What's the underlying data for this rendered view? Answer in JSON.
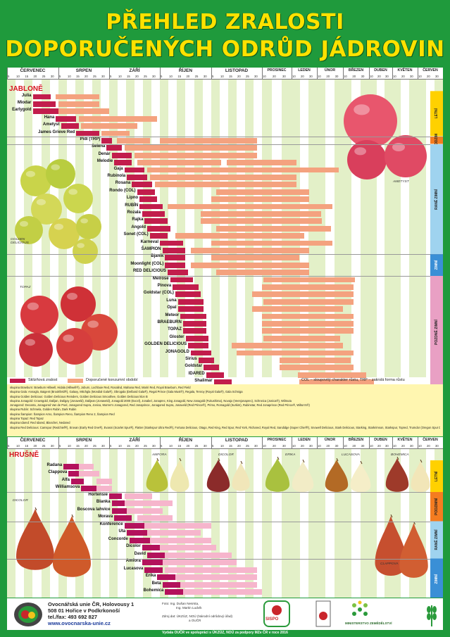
{
  "title": {
    "line1": "PŘEHLED ZRALOSTI",
    "line2": "DOPORUČENÝCH ODRŮD JÁDROVIN"
  },
  "months": [
    "ČERVENEC",
    "SRPEN",
    "ZÁŘÍ",
    "ŘÍJEN",
    "LISTOPAD",
    "PROSINEC",
    "LEDEN",
    "ÚNOR",
    "BŘEZEN",
    "DUBEN",
    "KVĚTEN",
    "ČERVEN"
  ],
  "days_detailed": [
    "5",
    "10",
    "15",
    "20",
    "25",
    "30"
  ],
  "days_compact": [
    "10",
    "20",
    "30"
  ],
  "colors": {
    "ripeness": "#c21d4c",
    "consumer": "#f4a27f",
    "pear_consumer": "#f6b5cc",
    "pear_ripeness": "#b3125c",
    "stripe_green": "#e3f0c8",
    "letni": "#ffd100",
    "podzimni": "#f47c20",
    "rane_zimni": "#9fd3ef",
    "zimni": "#3a8fd6",
    "pozdne_zimni": "#e9a0c4"
  },
  "apple": {
    "section_title": "JABLONĚ",
    "rows": [
      {
        "name": "Julia",
        "r": [
          0.5,
          0.85
        ],
        "c": [
          [
            0.95,
            1.8
          ]
        ]
      },
      {
        "name": "Miodar",
        "r": [
          0.5,
          0.95
        ],
        "c": [
          [
            1.0,
            1.8
          ]
        ]
      },
      {
        "name": "Earlygold",
        "r": [
          0.5,
          1.05
        ],
        "c": [
          [
            1.0,
            2.0
          ]
        ]
      },
      {
        "name": "Hana",
        "r": [
          0.95,
          1.35
        ],
        "c": [
          [
            1.4,
            2.95
          ]
        ]
      },
      {
        "name": "Ametyst",
        "r": [
          1.05,
          1.4
        ],
        "c": [
          [
            1.45,
            2.55
          ]
        ]
      },
      {
        "name": "James Grieve Red",
        "r": [
          1.35,
          1.8
        ],
        "c": [
          [
            1.85,
            2.4
          ]
        ]
      },
      {
        "name": "Pidi (TRP)",
        "r": [
          1.85,
          2.05
        ],
        "c": [
          [
            2.15,
            2.8
          ],
          [
            3.0,
            4.9
          ]
        ]
      },
      {
        "name": "Selena",
        "r": [
          1.95,
          2.25
        ],
        "c": [
          [
            2.3,
            4.9
          ]
        ]
      },
      {
        "name": "Denár",
        "r": [
          2.05,
          2.45
        ],
        "c": [
          [
            2.5,
            4.9
          ]
        ]
      },
      {
        "name": "Melodie",
        "r": [
          2.1,
          2.45
        ],
        "c": [
          [
            2.55,
            4.2
          ],
          [
            4.3,
            6.2
          ]
        ]
      },
      {
        "name": "Gaja",
        "r": [
          2.3,
          2.7
        ],
        "c": [
          [
            2.75,
            7.85
          ]
        ]
      },
      {
        "name": "Rubinola",
        "r": [
          2.35,
          2.75
        ],
        "c": [
          [
            2.8,
            6.2
          ]
        ]
      },
      {
        "name": "Rosana",
        "r": [
          2.45,
          2.85
        ],
        "c": [
          [
            2.9,
            6.2
          ]
        ]
      },
      {
        "name": "Rondo (COL)",
        "r": [
          2.55,
          2.9
        ],
        "c": [
          [
            4.1,
            6.7
          ]
        ]
      },
      {
        "name": "Lipno",
        "r": [
          2.6,
          2.95
        ],
        "c": [
          [
            4.0,
            6.7
          ]
        ]
      },
      {
        "name": "RUBÍN",
        "r": [
          2.6,
          3.05
        ],
        "c": [
          [
            3.15,
            7.6
          ]
        ]
      },
      {
        "name": "Rozala",
        "r": [
          2.65,
          3.1
        ],
        "c": [
          [
            3.8,
            7.15
          ]
        ]
      },
      {
        "name": "Rajka",
        "r": [
          2.7,
          3.15
        ],
        "c": [
          [
            3.8,
            7.2
          ]
        ]
      },
      {
        "name": "Angold",
        "r": [
          2.75,
          3.2
        ],
        "c": [
          [
            4.1,
            7.55
          ]
        ]
      },
      {
        "name": "Sonet (COL)",
        "r": [
          2.8,
          3.15
        ],
        "c": [
          [
            3.3,
            6.5
          ]
        ]
      },
      {
        "name": "Karneval",
        "r": [
          3.0,
          3.45
        ],
        "c": [
          [
            4.0,
            7.6
          ]
        ]
      },
      {
        "name": "ŠAMPION",
        "r": [
          3.05,
          3.5
        ],
        "c": [
          [
            3.6,
            6.7
          ]
        ]
      },
      {
        "name": "Bjanik",
        "r": [
          3.1,
          3.5
        ],
        "c": [
          [
            4.0,
            6.3
          ]
        ]
      },
      {
        "name": "Moonlight (COL)",
        "r": [
          3.1,
          3.5
        ],
        "c": [
          [
            3.6,
            6.7
          ]
        ]
      },
      {
        "name": "RED DELICIOUS",
        "r": [
          3.15,
          3.55
        ],
        "c": [
          [
            4.1,
            6.7
          ]
        ]
      },
      {
        "name": "Melrose",
        "r": [
          3.2,
          3.65
        ],
        "c": [
          [
            5.05,
            8.45
          ]
        ]
      },
      {
        "name": "Pinova",
        "r": [
          3.25,
          3.75
        ],
        "c": [
          [
            5.0,
            8.4
          ]
        ]
      },
      {
        "name": "Goldstar (COL)",
        "r": [
          3.3,
          3.8
        ],
        "c": [
          [
            4.8,
            8.4
          ]
        ]
      },
      {
        "name": "Luna",
        "r": [
          3.35,
          3.85
        ],
        "c": [
          [
            5.05,
            8.4
          ]
        ]
      },
      {
        "name": "Opal",
        "r": [
          3.35,
          3.85
        ],
        "c": [
          [
            4.8,
            8.0
          ]
        ]
      },
      {
        "name": "Meteor",
        "r": [
          3.4,
          3.9
        ],
        "c": [
          [
            5.0,
            8.4
          ]
        ]
      },
      {
        "name": "BRAEBURN",
        "r": [
          3.45,
          3.9
        ],
        "c": [
          [
            5.0,
            8.4
          ]
        ]
      },
      {
        "name": "TOPAZ",
        "r": [
          3.45,
          3.9
        ],
        "c": [
          [
            5.0,
            8.4
          ]
        ]
      },
      {
        "name": "Gloster",
        "r": [
          3.5,
          3.95
        ],
        "c": [
          [
            5.05,
            7.9
          ]
        ]
      },
      {
        "name": "GOLDEN DELICIOUS",
        "r": [
          3.55,
          3.95
        ],
        "c": [
          [
            4.4,
            8.0
          ]
        ]
      },
      {
        "name": "JONAGOLD",
        "r": [
          3.6,
          4.0
        ],
        "c": [
          [
            4.5,
            8.4
          ]
        ]
      },
      {
        "name": "Sirius",
        "r": [
          3.75,
          4.05
        ],
        "c": [
          [
            5.6,
            8.3
          ]
        ]
      },
      {
        "name": "Goldstar",
        "r": [
          3.85,
          4.15
        ],
        "c": [
          [
            5.6,
            8.4
          ]
        ]
      },
      {
        "name": "IDARED",
        "r": [
          3.9,
          4.25
        ],
        "c": [
          [
            6.25,
            8.9
          ]
        ]
      },
      {
        "name": "Shalimar",
        "r": [
          4.05,
          4.4
        ],
        "c": [
          [
            6.3,
            9.2
          ]
        ]
      }
    ],
    "seasons": [
      "LETNÍ",
      "PODZIM",
      "RANĚ ZIMNÍ",
      "ZIMNÍ",
      "POZDNĚ ZIMNÍ"
    ],
    "captions": [
      "GOLDEN DELICIOUS",
      "AMETYST",
      "TOPAZ"
    ]
  },
  "legend": {
    "ripeness": "Sklizňová zralost",
    "consumer": "Doporučené konzumní období",
    "note": "COL – sloupovitý charakter růstu, TRP – zakrslá forma růstu"
  },
  "notes": [
    "skupina Braeburn: Braeburn Hillwell, Hidala (Hillwell®), Joburn, Lochbuie Red, Rosalind, Mahana Red, Mariri Red, Royal Braeburn, Red Field",
    "skupina Gala: Annaglo, Baigent (Brookfield®), Galaxy, Mitchgla (Mondial Gala®), Obrogala (Delbard Gala®), Regal Prince (Gala Must®), Regala, Tenroy (Royal Gala®), Gala Schniga",
    "skupina Golden Delicious: Golden Delicious Reinders, Golden Delicious Smoothee, Golden Delicious klon B",
    "skupina Jonagold: Crowngold, Dalijan, Daligoy (Jonaveld), Dalijean (Jonaveld), Jonagold 2000 (Excel), Jonabel, Jonaprec, King Jonagold, New Jonagold (Fukushima), Novajo (Veenjonaprec), Schneica (Jonica®), Wilmuta",
    "Jonagored: Decosta, Jonagored Van de Poel, Jonagored Supra, Jonica, Morren's Jonagored, Red Jonaprince, Jonagored Supra, Jonaveld (Red Prince®), Primo, Romagold (Surkim), Rubinstar, Red Jonaprince (Red Prince®, Wilton's®)",
    "skupina Rubín: Schmela, Golden Rubin, Dark Rubin",
    "skupina Šampion: Šampion Arno, Šampion Reno, Šampion Reno 2, Šampion Red",
    "skupina Topaz: Red Topaz",
    "skupina Idared: Red Idared, Blanchet, Nedared",
    "skupina Red Delicious: Camspur (Redchief®), Erovan (Early Red One®), Evasni (Scarlet Spur®), Flatter (Starkspur Ultra Red®), Fortuna Delicious, Otago, Red King, Red Spur, Red York, Richared, Royal Red, Sandidge (Super Chief®), Snowell Delicious, Stark Delicious, Starking, Starkrimson, Starkspur, Topred, Trumdor (Oregon Spur Delicious®), Vallee (Red Cap®), Red Spur"
  ],
  "pear": {
    "section_title": "HRUŠNĚ",
    "rows": [
      {
        "name": "Radana",
        "r": [
          1.1,
          1.4
        ],
        "c": [
          [
            1.4,
            1.7
          ]
        ]
      },
      {
        "name": "Clappova",
        "r": [
          1.2,
          1.5
        ],
        "c": [
          [
            1.4,
            1.8
          ]
        ]
      },
      {
        "name": "Alfa",
        "r": [
          1.25,
          1.5
        ],
        "c": [
          [
            1.75,
            2.05
          ]
        ]
      },
      {
        "name": "Williamsova",
        "r": [
          1.45,
          1.75
        ],
        "c": [
          [
            1.75,
            2.05
          ]
        ]
      },
      {
        "name": "Hortensie",
        "r": [
          2.0,
          2.25
        ],
        "c": [
          [
            2.3,
            2.85
          ]
        ]
      },
      {
        "name": "Blanka",
        "r": [
          2.05,
          2.3
        ],
        "c": [
          [
            2.3,
            3.25
          ]
        ]
      },
      {
        "name": "Boscova lahvice",
        "r": [
          2.05,
          2.35
        ],
        "c": [
          [
            2.35,
            3.05
          ]
        ]
      },
      {
        "name": "Morava",
        "r": [
          2.1,
          2.45
        ],
        "c": [
          [
            2.55,
            3.25
          ]
        ]
      },
      {
        "name": "Konference",
        "r": [
          2.3,
          2.7
        ],
        "c": [
          [
            2.7,
            4.0
          ]
        ]
      },
      {
        "name": "Uta",
        "r": [
          2.35,
          2.75
        ],
        "c": [
          [
            2.75,
            3.8
          ]
        ]
      },
      {
        "name": "Concorde",
        "r": [
          2.4,
          2.8
        ],
        "c": [
          [
            2.8,
            4.0
          ]
        ]
      },
      {
        "name": "Dicolor",
        "r": [
          2.65,
          3.0
        ],
        "c": [
          [
            3.0,
            4.1
          ]
        ]
      },
      {
        "name": "David",
        "r": [
          2.75,
          3.1
        ],
        "c": [
          [
            3.1,
            4.4
          ]
        ]
      },
      {
        "name": "Amfora",
        "r": [
          2.65,
          3.05
        ],
        "c": [
          [
            3.05,
            4.5
          ]
        ]
      },
      {
        "name": "Lucasova",
        "r": [
          2.7,
          3.05
        ],
        "c": [
          [
            3.1,
            4.9
          ]
        ]
      },
      {
        "name": "Erika",
        "r": [
          2.95,
          3.3
        ],
        "c": [
          [
            3.3,
            4.9
          ]
        ]
      },
      {
        "name": "Beta",
        "r": [
          3.05,
          3.4
        ],
        "c": [
          [
            3.4,
            4.9
          ]
        ]
      },
      {
        "name": "Bohemica",
        "r": [
          3.1,
          3.45
        ],
        "c": [
          [
            3.45,
            5.0
          ]
        ]
      }
    ],
    "seasons": [
      "LETNÍ",
      "PODZIMNÍ",
      "RANĚ ZIMNÍ",
      "ZIMNÍ"
    ],
    "fruit_labels": [
      "AMFORA",
      "DICOLOR",
      "ERIKA",
      "LUCASOVA",
      "BOHEMICA"
    ],
    "captions": [
      "DICOLOR",
      "CLAPPOVA"
    ]
  },
  "footer": {
    "org_lines": [
      "Ovocnářská unie ČR, Holovousy 1",
      "508 01 Hořice v Podkrkonoší",
      "tel./fax: 493 692 827",
      "www.ovocnarska-unie.cz"
    ],
    "photo_lines": [
      "Foto:  Ing. Dušan Nesrsta,",
      "Ing. Martin Ludvík"
    ],
    "source_lines": [
      "Zdroj dat:  ÚKZÚZ, NOÚ (Národní odrůdový úřad)",
      "a OUČR"
    ],
    "logo_sispo": "SISPO",
    "ministry": "MINISTERSTVO ZEMĚDĚLSTVÍ",
    "credit": "Vydala OUČR ve spolupráci s ÚKZÚZ, NOÚ za podpory MZe ČR v roce 2016"
  }
}
